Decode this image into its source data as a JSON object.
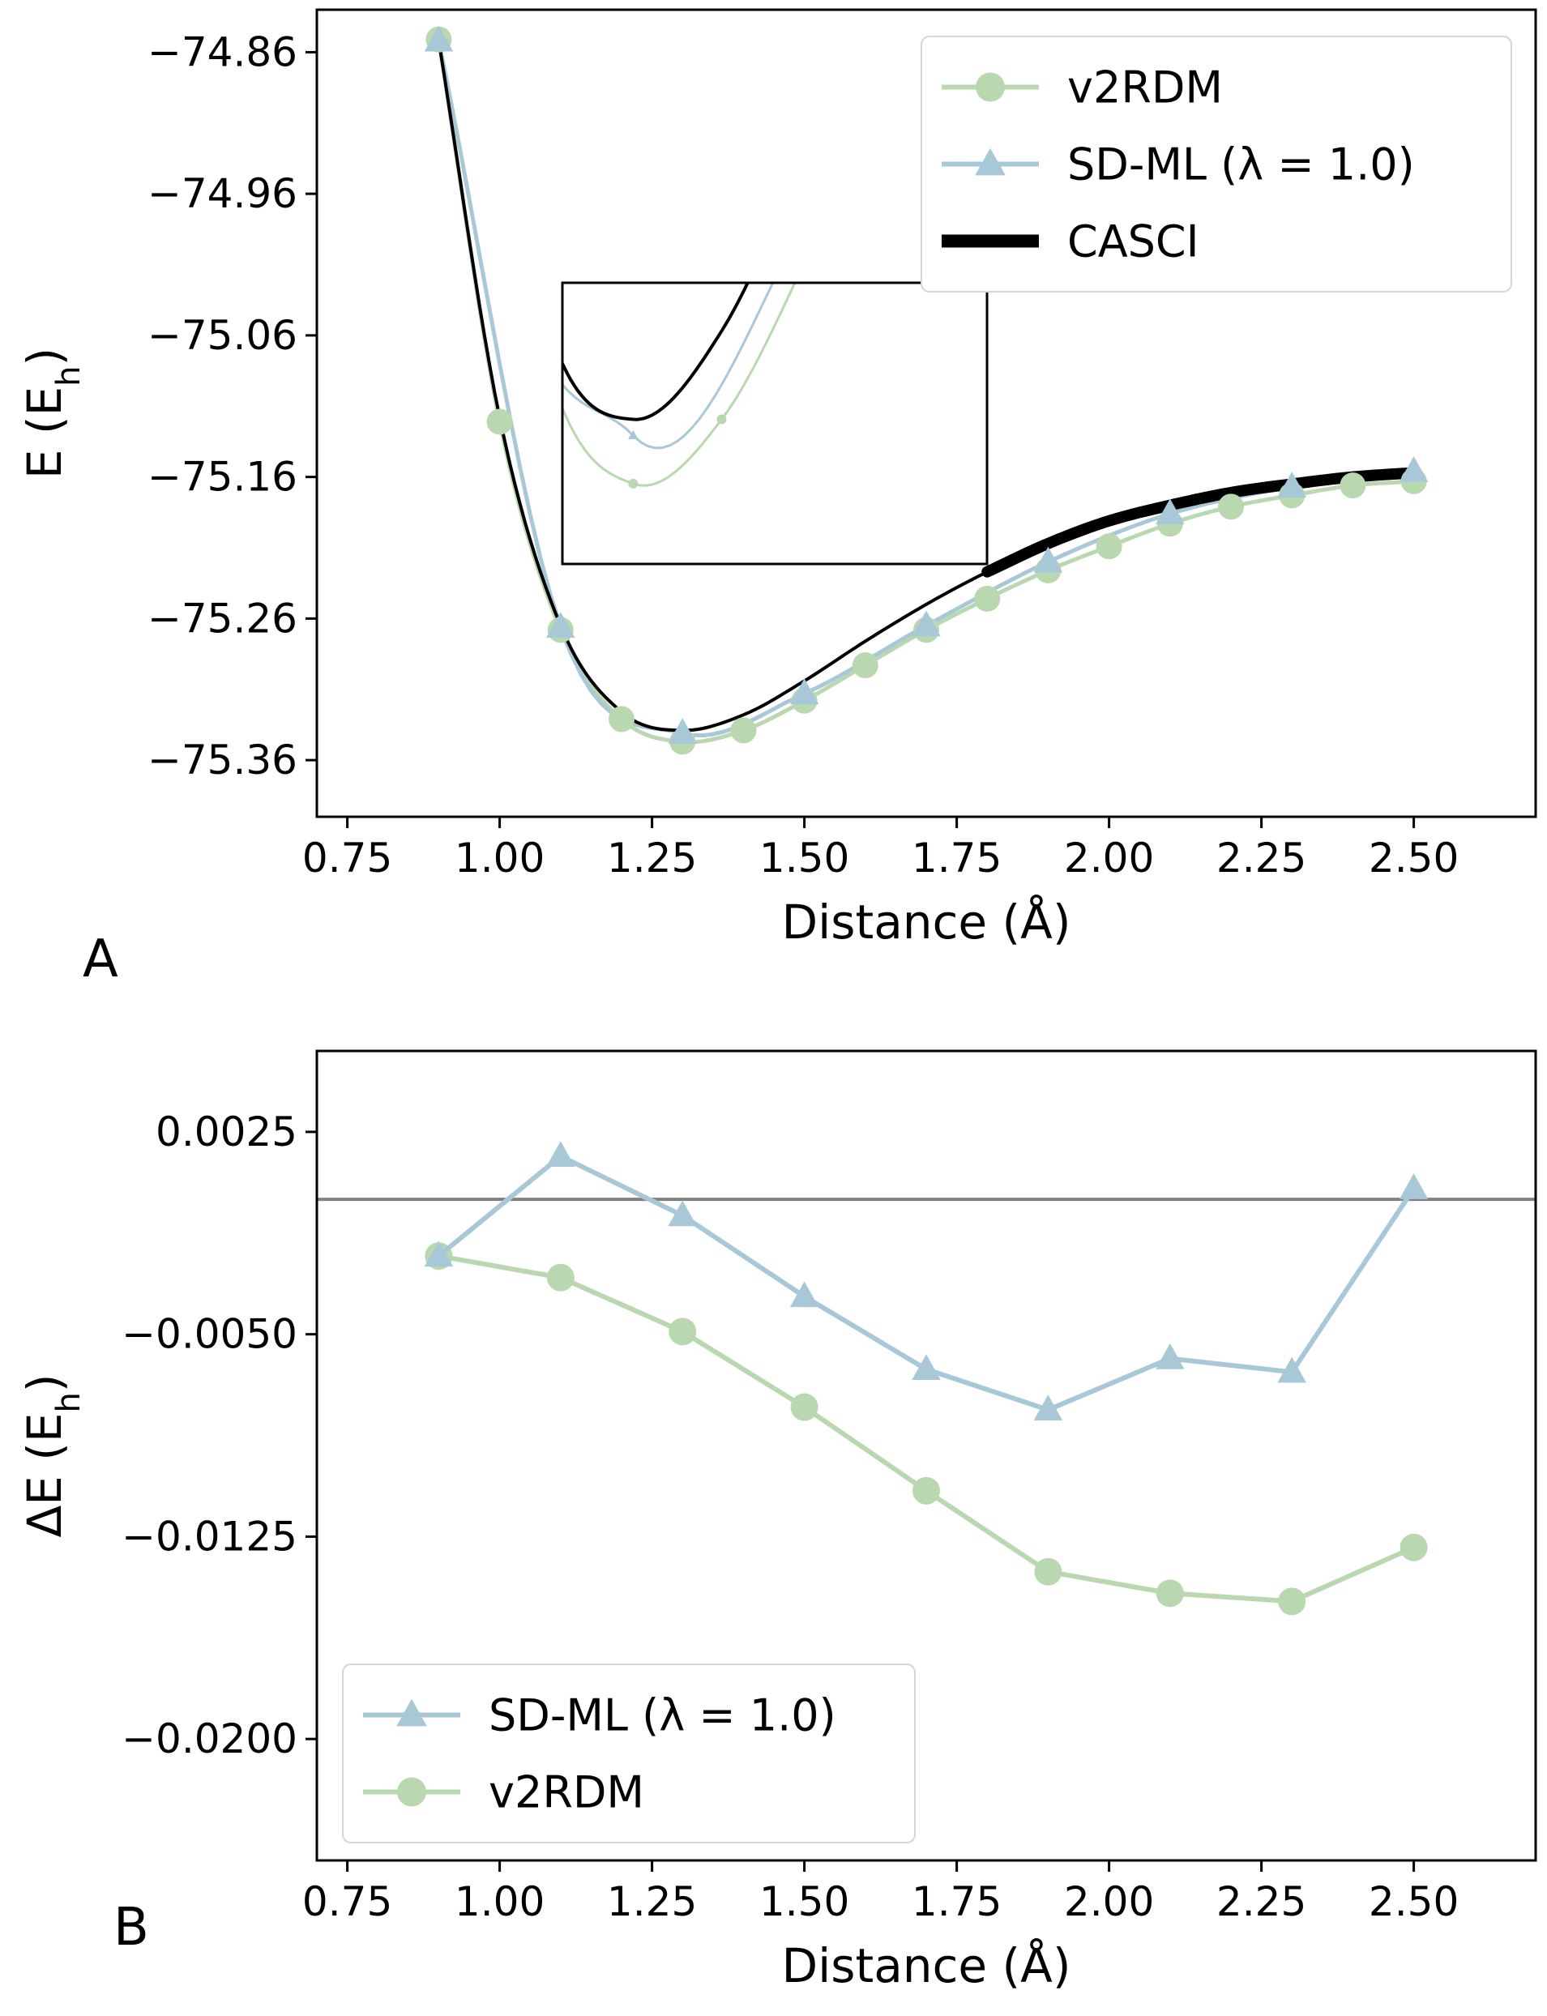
{
  "chart_data": [
    {
      "panel": "A",
      "type": "line",
      "xlabel": "Distance (Å)",
      "ylabel": "E (E",
      "ylabel_sub": "h",
      "ylabel_close": ")",
      "xlim": [
        0.7,
        2.7
      ],
      "ylim": [
        -75.4,
        -74.83
      ],
      "xticks": [
        0.75,
        1.0,
        1.25,
        1.5,
        1.75,
        2.0,
        2.25,
        2.5
      ],
      "xtick_labels": [
        "0.75",
        "1.00",
        "1.25",
        "1.50",
        "1.75",
        "2.00",
        "2.25",
        "2.50"
      ],
      "yticks": [
        -74.86,
        -74.96,
        -75.06,
        -75.16,
        -75.26,
        -75.36
      ],
      "ytick_labels": [
        "−74.86",
        "−74.96",
        "−75.06",
        "−75.16",
        "−75.26",
        "−75.36"
      ],
      "legend_position": "top-right",
      "series": [
        {
          "name": "v2RDM",
          "marker": "circle",
          "color": "#b9d8b0",
          "x": [
            0.9,
            1.0,
            1.1,
            1.2,
            1.3,
            1.4,
            1.5,
            1.6,
            1.7,
            1.8,
            1.9,
            2.0,
            2.1,
            2.2,
            2.3,
            2.4,
            2.5
          ],
          "y": [
            -74.851,
            -75.121,
            -75.268,
            -75.331,
            -75.347,
            -75.339,
            -75.318,
            -75.293,
            -75.268,
            -75.246,
            -75.226,
            -75.209,
            -75.193,
            -75.181,
            -75.173,
            -75.166,
            -75.163
          ]
        },
        {
          "name": "SD-ML (λ = 1.0)",
          "marker": "triangle",
          "color": "#a8c8d8",
          "x": [
            0.9,
            1.1,
            1.3,
            1.5,
            1.7,
            1.9,
            2.1,
            2.3,
            2.5
          ],
          "y": [
            -74.852,
            -75.266,
            -75.341,
            -75.313,
            -75.265,
            -75.22,
            -75.186,
            -75.167,
            -75.156
          ]
        },
        {
          "name": "CASCI",
          "marker": "none",
          "color": "#000000",
          "x": [
            0.9,
            1.0,
            1.1,
            1.2,
            1.3,
            1.4,
            1.5,
            1.6,
            1.7,
            1.8,
            1.9,
            2.0,
            2.1,
            2.2,
            2.3,
            2.4,
            2.5
          ],
          "y": [
            -74.852,
            -75.118,
            -75.265,
            -75.326,
            -75.339,
            -75.328,
            -75.304,
            -75.276,
            -75.25,
            -75.227,
            -75.207,
            -75.191,
            -75.18,
            -75.171,
            -75.165,
            -75.16,
            -75.157
          ]
        }
      ]
    },
    {
      "panel": "B",
      "type": "line",
      "xlabel": "Distance (Å)",
      "ylabel": "ΔE (E",
      "ylabel_sub": "h",
      "ylabel_close": ")",
      "xlim": [
        0.7,
        2.7
      ],
      "ylim": [
        -0.0245,
        0.0055
      ],
      "xticks": [
        0.75,
        1.0,
        1.25,
        1.5,
        1.75,
        2.0,
        2.25,
        2.5
      ],
      "xtick_labels": [
        "0.75",
        "1.00",
        "1.25",
        "1.50",
        "1.75",
        "2.00",
        "2.25",
        "2.50"
      ],
      "yticks": [
        0.0025,
        -0.005,
        -0.0125,
        -0.02
      ],
      "ytick_labels": [
        "0.0025",
        "−0.0050",
        "−0.0125",
        "−0.0200"
      ],
      "reference_line": 0.0,
      "legend_position": "bottom-left",
      "series": [
        {
          "name": "SD-ML (λ = 1.0)",
          "marker": "triangle",
          "color": "#a8c8d8",
          "x": [
            0.9,
            1.1,
            1.3,
            1.5,
            1.7,
            1.9,
            2.1,
            2.3,
            2.5
          ],
          "y": [
            -0.0021,
            0.0016,
            -0.0006,
            -0.0036,
            -0.0063,
            -0.0078,
            -0.0059,
            -0.0064,
            0.0004
          ]
        },
        {
          "name": "v2RDM",
          "marker": "circle",
          "color": "#b9d8b0",
          "x": [
            0.9,
            1.1,
            1.3,
            1.5,
            1.7,
            1.9,
            2.1,
            2.3,
            2.5
          ],
          "y": [
            -0.0021,
            -0.0029,
            -0.0049,
            -0.0077,
            -0.0108,
            -0.0138,
            -0.0146,
            -0.0149,
            -0.0129
          ]
        }
      ]
    }
  ]
}
